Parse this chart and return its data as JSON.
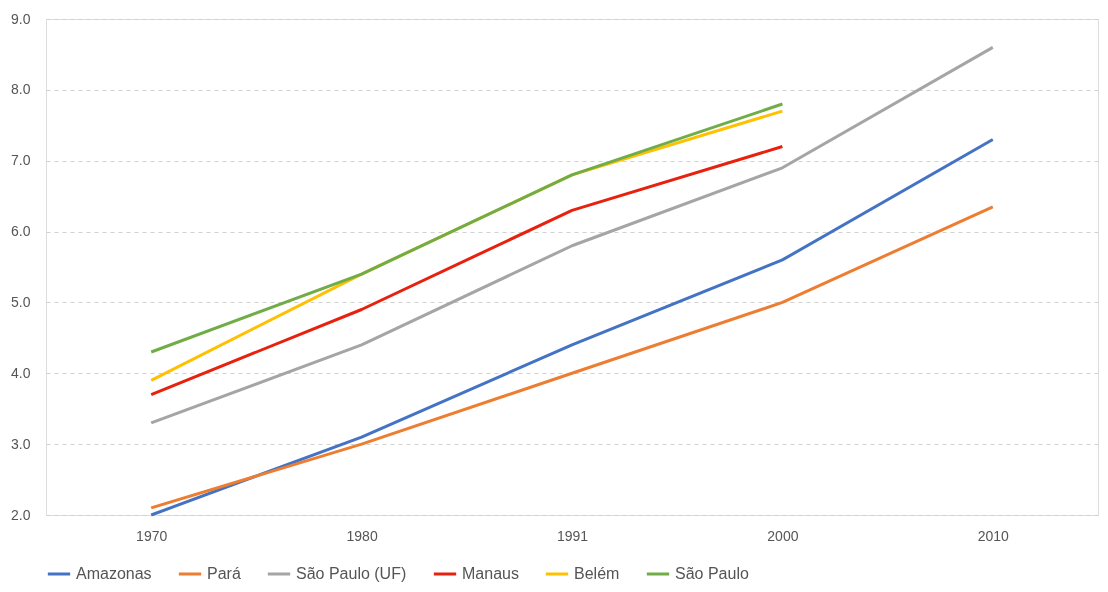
{
  "chart_data": {
    "type": "line",
    "categories": [
      "1970",
      "1980",
      "1991",
      "2000",
      "2010"
    ],
    "series": [
      {
        "name": "Amazonas",
        "color": "#4472c4",
        "values": [
          2.0,
          3.1,
          4.4,
          5.6,
          7.3
        ]
      },
      {
        "name": "Pará",
        "color": "#ed7d31",
        "values": [
          2.1,
          3.0,
          4.0,
          5.0,
          6.35
        ]
      },
      {
        "name": "São Paulo (UF)",
        "color": "#a5a5a5",
        "values": [
          3.3,
          4.4,
          5.8,
          6.9,
          8.6
        ]
      },
      {
        "name": "Manaus",
        "color": "#e8210f",
        "values": [
          3.7,
          4.9,
          6.3,
          7.2,
          null
        ]
      },
      {
        "name": "Belém",
        "color": "#ffc000",
        "values": [
          3.9,
          5.4,
          6.8,
          7.7,
          null
        ]
      },
      {
        "name": "São Paulo",
        "color": "#70ad47",
        "values": [
          4.3,
          5.4,
          6.8,
          7.8,
          null
        ]
      }
    ],
    "ylim": [
      2,
      9
    ],
    "yticks": [
      {
        "value": 2,
        "label": "2.0"
      },
      {
        "value": 3,
        "label": "3.0"
      },
      {
        "value": 4,
        "label": "4.0"
      },
      {
        "value": 5,
        "label": "5.0"
      },
      {
        "value": 6,
        "label": "6.0"
      },
      {
        "value": 7,
        "label": "7.0"
      },
      {
        "value": 8,
        "label": "8.0"
      },
      {
        "value": 9,
        "label": "9.0"
      }
    ],
    "grid": "y",
    "legend": "bottom",
    "marker": "none",
    "line_style": "solid"
  }
}
